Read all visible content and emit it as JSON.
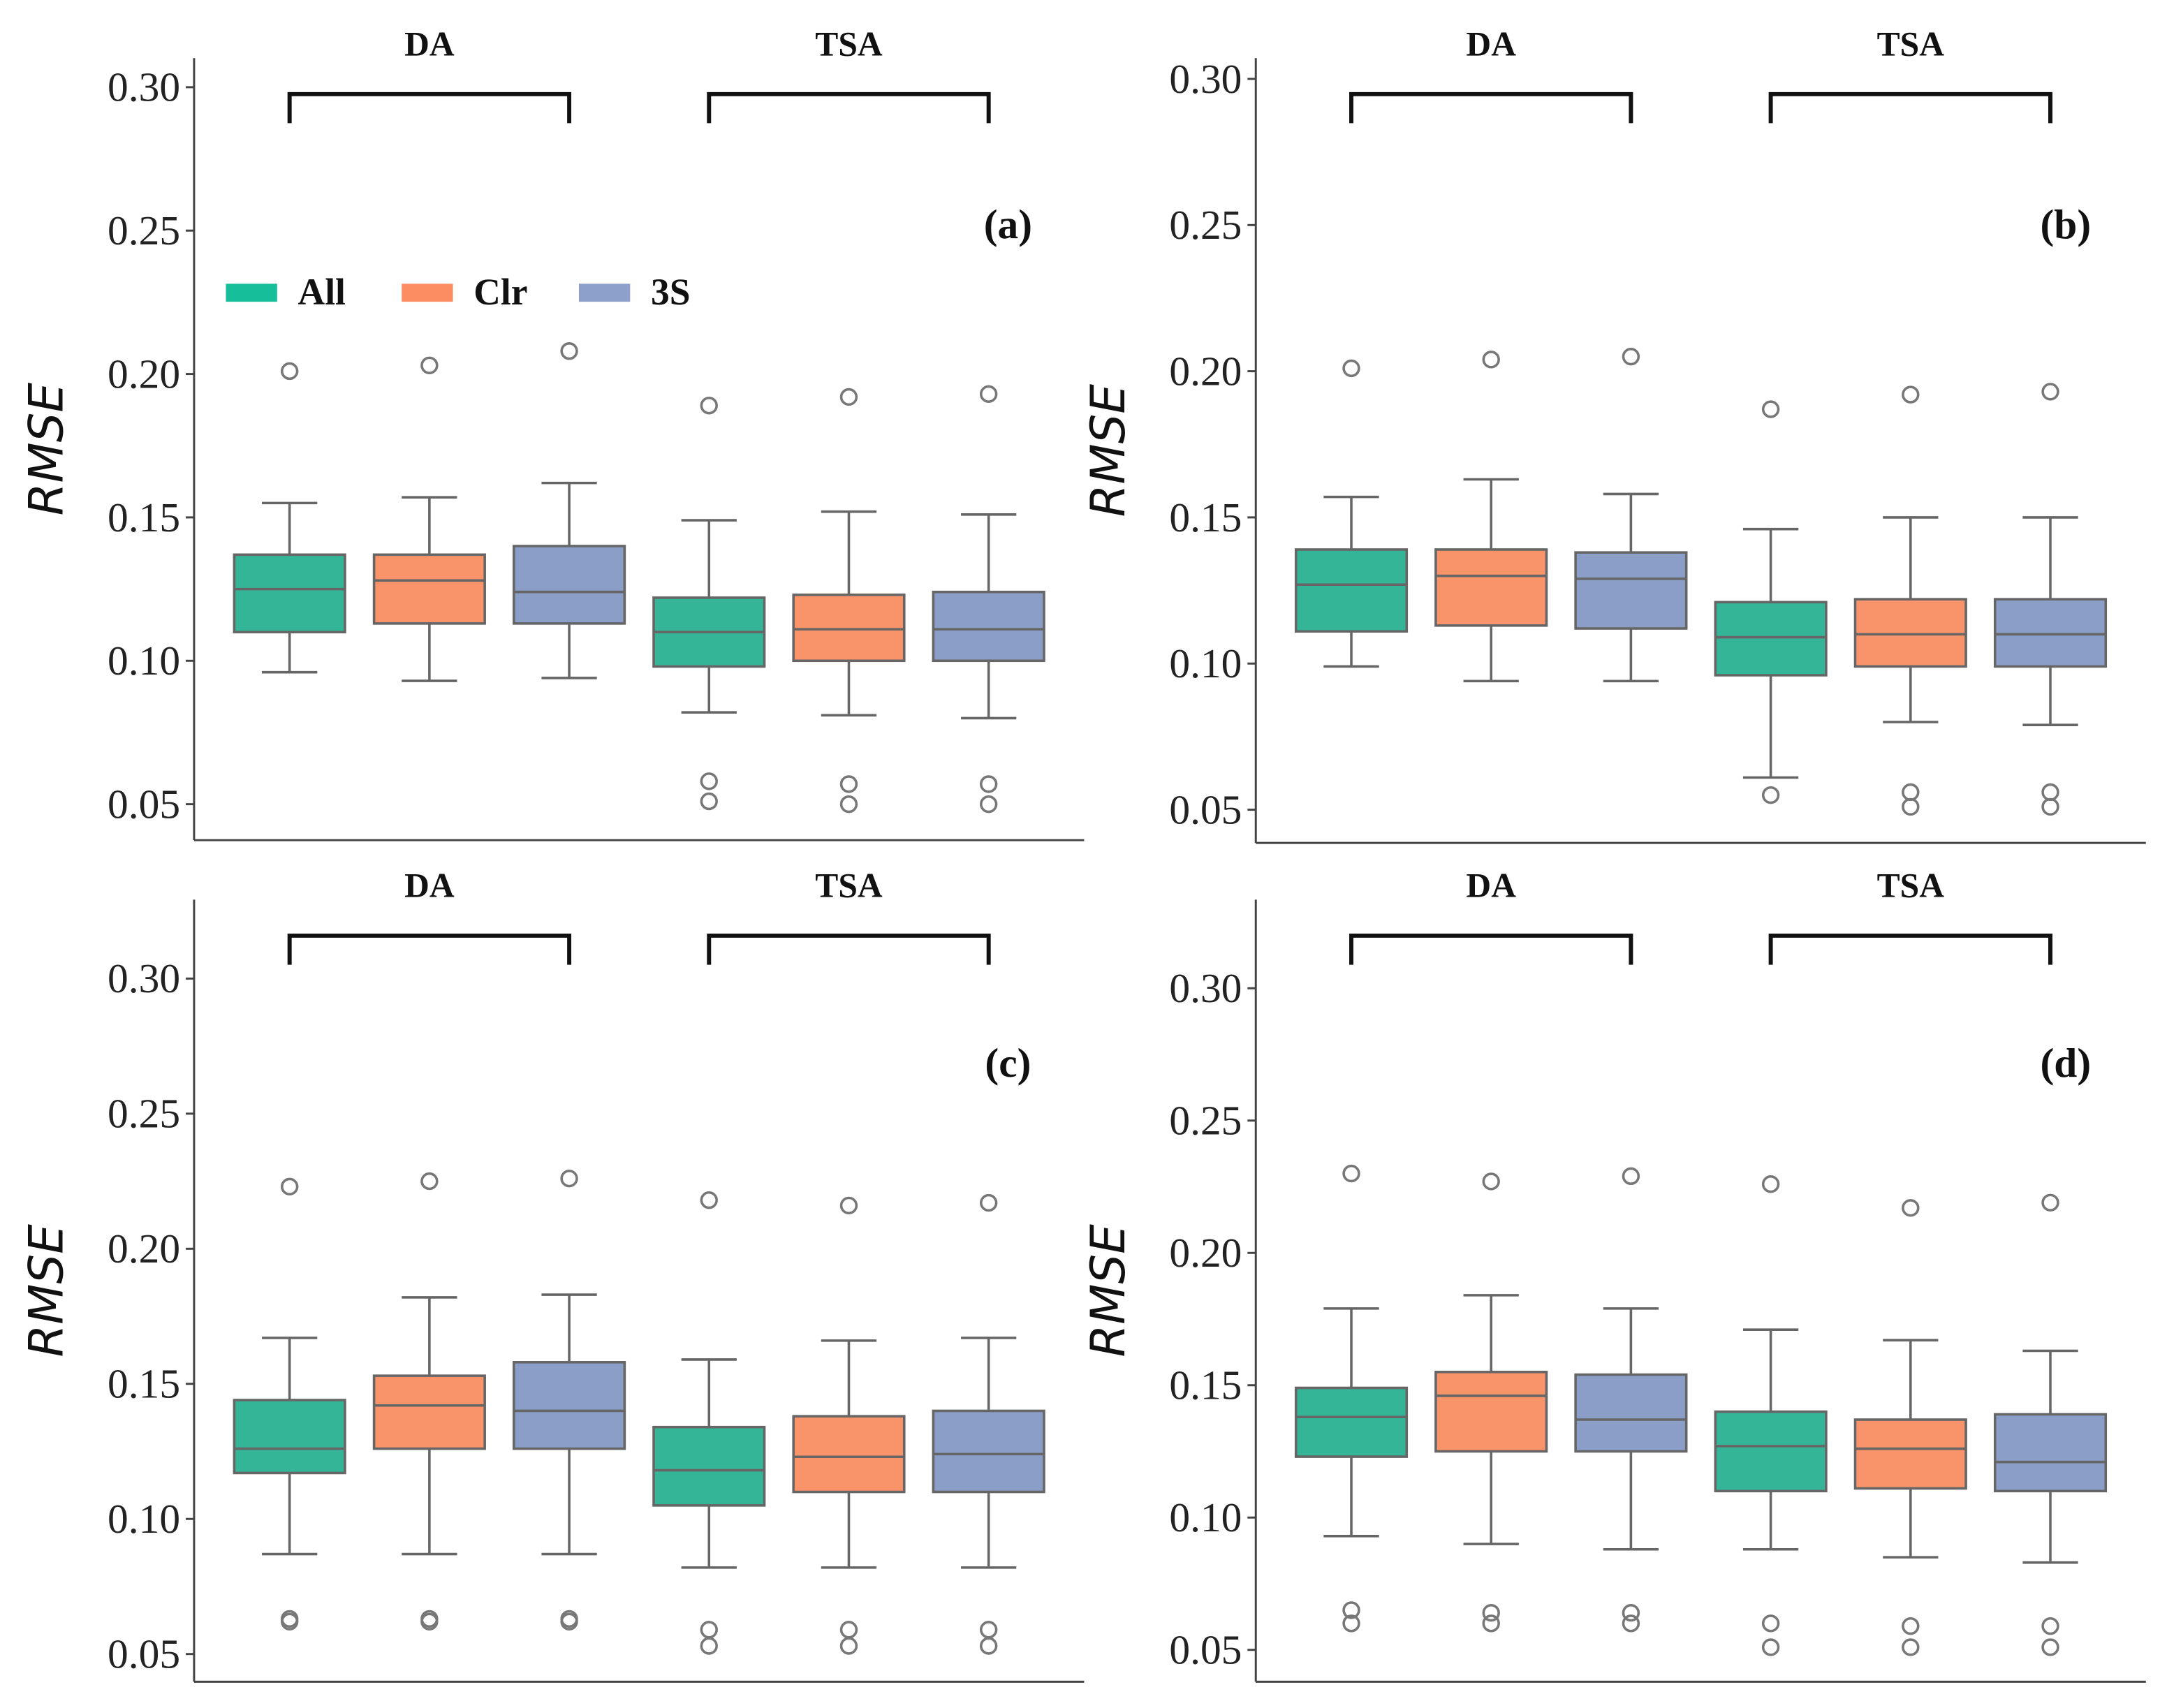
{
  "chart_data": [
    {
      "type": "box",
      "panel_label": "(a)",
      "ylabel": "RMSE",
      "ylim": [
        0.04,
        0.32
      ],
      "yticks": [
        "0.05",
        "0.10",
        "0.15",
        "0.20",
        "0.25",
        "0.30"
      ],
      "groups": [
        "DA",
        "TSA"
      ],
      "legend": {
        "placement": "top-left",
        "entries": [
          {
            "name": "All",
            "color": "#17BE9A"
          },
          {
            "name": "Clr",
            "color": "#FC8D62"
          },
          {
            "name": "3S",
            "color": "#8DA0CB"
          }
        ]
      },
      "boxes": [
        {
          "group": "DA",
          "series": "All",
          "whisker_low": 0.096,
          "q1": 0.11,
          "median": 0.125,
          "q3": 0.137,
          "whisker_high": 0.155,
          "outliers": [
            0.201
          ]
        },
        {
          "group": "DA",
          "series": "Clr",
          "whisker_low": 0.093,
          "q1": 0.113,
          "median": 0.128,
          "q3": 0.137,
          "whisker_high": 0.157,
          "outliers": [
            0.203
          ]
        },
        {
          "group": "DA",
          "series": "3S",
          "whisker_low": 0.094,
          "q1": 0.113,
          "median": 0.124,
          "q3": 0.14,
          "whisker_high": 0.162,
          "outliers": [
            0.208
          ]
        },
        {
          "group": "TSA",
          "series": "All",
          "whisker_low": 0.082,
          "q1": 0.098,
          "median": 0.11,
          "q3": 0.122,
          "whisker_high": 0.149,
          "outliers": [
            0.189,
            0.058,
            0.051
          ]
        },
        {
          "group": "TSA",
          "series": "Clr",
          "whisker_low": 0.081,
          "q1": 0.1,
          "median": 0.111,
          "q3": 0.123,
          "whisker_high": 0.152,
          "outliers": [
            0.192,
            0.057,
            0.05
          ]
        },
        {
          "group": "TSA",
          "series": "3S",
          "whisker_low": 0.08,
          "q1": 0.1,
          "median": 0.111,
          "q3": 0.124,
          "whisker_high": 0.151,
          "outliers": [
            0.193,
            0.057,
            0.05
          ]
        }
      ]
    },
    {
      "type": "box",
      "panel_label": "(b)",
      "ylabel": "RMSE",
      "ylim": [
        0.04,
        0.32
      ],
      "yticks": [
        "0.05",
        "0.10",
        "0.15",
        "0.20",
        "0.25",
        "0.30"
      ],
      "groups": [
        "DA",
        "TSA"
      ],
      "boxes": [
        {
          "group": "DA",
          "series": "All",
          "whisker_low": 0.099,
          "q1": 0.111,
          "median": 0.127,
          "q3": 0.139,
          "whisker_high": 0.157,
          "outliers": [
            0.201
          ]
        },
        {
          "group": "DA",
          "series": "Clr",
          "whisker_low": 0.094,
          "q1": 0.113,
          "median": 0.13,
          "q3": 0.139,
          "whisker_high": 0.163,
          "outliers": [
            0.204
          ]
        },
        {
          "group": "DA",
          "series": "3S",
          "whisker_low": 0.094,
          "q1": 0.112,
          "median": 0.129,
          "q3": 0.138,
          "whisker_high": 0.158,
          "outliers": [
            0.205
          ]
        },
        {
          "group": "TSA",
          "series": "All",
          "whisker_low": 0.061,
          "q1": 0.096,
          "median": 0.109,
          "q3": 0.121,
          "whisker_high": 0.146,
          "outliers": [
            0.187,
            0.055
          ]
        },
        {
          "group": "TSA",
          "series": "Clr",
          "whisker_low": 0.08,
          "q1": 0.099,
          "median": 0.11,
          "q3": 0.122,
          "whisker_high": 0.15,
          "outliers": [
            0.192,
            0.056,
            0.051
          ]
        },
        {
          "group": "TSA",
          "series": "3S",
          "whisker_low": 0.079,
          "q1": 0.099,
          "median": 0.11,
          "q3": 0.122,
          "whisker_high": 0.15,
          "outliers": [
            0.193,
            0.056,
            0.051
          ]
        }
      ]
    },
    {
      "type": "box",
      "panel_label": "(c)",
      "ylabel": "RMSE",
      "ylim": [
        0.04,
        0.33
      ],
      "yticks": [
        "0.05",
        "0.10",
        "0.15",
        "0.20",
        "0.25",
        "0.30"
      ],
      "groups": [
        "DA",
        "TSA"
      ],
      "boxes": [
        {
          "group": "DA",
          "series": "All",
          "whisker_low": 0.087,
          "q1": 0.117,
          "median": 0.126,
          "q3": 0.144,
          "whisker_high": 0.167,
          "outliers": [
            0.223,
            0.063,
            0.062
          ]
        },
        {
          "group": "DA",
          "series": "Clr",
          "whisker_low": 0.087,
          "q1": 0.126,
          "median": 0.142,
          "q3": 0.153,
          "whisker_high": 0.182,
          "outliers": [
            0.225,
            0.063,
            0.062
          ]
        },
        {
          "group": "DA",
          "series": "3S",
          "whisker_low": 0.087,
          "q1": 0.126,
          "median": 0.14,
          "q3": 0.158,
          "whisker_high": 0.183,
          "outliers": [
            0.226,
            0.063,
            0.062
          ]
        },
        {
          "group": "TSA",
          "series": "All",
          "whisker_low": 0.082,
          "q1": 0.105,
          "median": 0.118,
          "q3": 0.134,
          "whisker_high": 0.159,
          "outliers": [
            0.218,
            0.059,
            0.053
          ]
        },
        {
          "group": "TSA",
          "series": "Clr",
          "whisker_low": 0.082,
          "q1": 0.11,
          "median": 0.123,
          "q3": 0.138,
          "whisker_high": 0.166,
          "outliers": [
            0.216,
            0.059,
            0.053
          ]
        },
        {
          "group": "TSA",
          "series": "3S",
          "whisker_low": 0.082,
          "q1": 0.11,
          "median": 0.124,
          "q3": 0.14,
          "whisker_high": 0.167,
          "outliers": [
            0.217,
            0.059,
            0.053
          ]
        }
      ]
    },
    {
      "type": "box",
      "panel_label": "(d)",
      "ylabel": "RMSE",
      "ylim": [
        0.04,
        0.33
      ],
      "yticks": [
        "0.05",
        "0.10",
        "0.15",
        "0.20",
        "0.25",
        "0.30"
      ],
      "groups": [
        "DA",
        "TSA"
      ],
      "boxes": [
        {
          "group": "DA",
          "series": "All",
          "whisker_low": 0.093,
          "q1": 0.123,
          "median": 0.138,
          "q3": 0.149,
          "whisker_high": 0.179,
          "outliers": [
            0.23,
            0.065,
            0.06
          ]
        },
        {
          "group": "DA",
          "series": "Clr",
          "whisker_low": 0.09,
          "q1": 0.125,
          "median": 0.146,
          "q3": 0.155,
          "whisker_high": 0.184,
          "outliers": [
            0.227,
            0.064,
            0.06
          ]
        },
        {
          "group": "DA",
          "series": "3S",
          "whisker_low": 0.088,
          "q1": 0.125,
          "median": 0.137,
          "q3": 0.154,
          "whisker_high": 0.179,
          "outliers": [
            0.229,
            0.064,
            0.06
          ]
        },
        {
          "group": "TSA",
          "series": "All",
          "whisker_low": 0.088,
          "q1": 0.11,
          "median": 0.127,
          "q3": 0.14,
          "whisker_high": 0.171,
          "outliers": [
            0.226,
            0.06,
            0.051
          ]
        },
        {
          "group": "TSA",
          "series": "Clr",
          "whisker_low": 0.085,
          "q1": 0.111,
          "median": 0.126,
          "q3": 0.137,
          "whisker_high": 0.167,
          "outliers": [
            0.217,
            0.059,
            0.051
          ]
        },
        {
          "group": "TSA",
          "series": "3S",
          "whisker_low": 0.083,
          "q1": 0.11,
          "median": 0.121,
          "q3": 0.139,
          "whisker_high": 0.163,
          "outliers": [
            0.219,
            0.059,
            0.051
          ]
        }
      ]
    }
  ],
  "box_colors": {
    "All": "#35B597",
    "Clr": "#F9946A",
    "3S": "#8A9EC8"
  }
}
